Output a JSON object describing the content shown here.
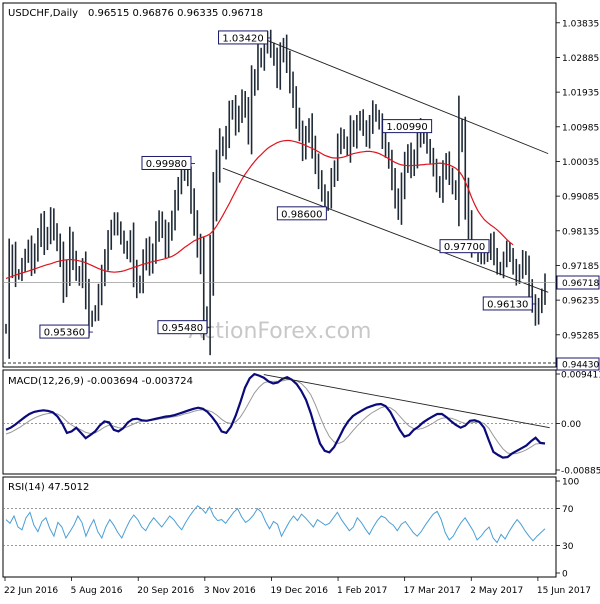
{
  "header": {
    "symbol": "USDCHF,Daily",
    "ohlc": "0.96515 0.96876 0.96335 0.96718"
  },
  "watermark": "ActionForex.com",
  "colors": {
    "price": "#1f2a36",
    "ma": "#e0141e",
    "macd": "#0a0a7a",
    "signal": "#999999",
    "rsi": "#4a9fd6",
    "trend": "#222222",
    "label_border": "#1a1a6a",
    "grid": "#777777"
  },
  "chart_data": [
    {
      "type": "line",
      "panel": "price",
      "x_tick_labels": [
        "22 Jun 2016",
        "5 Aug 2016",
        "20 Sep 2016",
        "3 Nov 2016",
        "19 Dec 2016",
        "1 Feb 2017",
        "17 Mar 2017",
        "2 May 2017",
        "15 Jun 2017"
      ],
      "y_tick_labels": [
        "1.03835",
        "1.02885",
        "1.01935",
        "1.00985",
        "1.00035",
        "0.99085",
        "0.98135",
        "0.97185",
        "0.96235",
        "0.95285"
      ],
      "ylim": [
        0.9443,
        1.0435
      ],
      "price_bars": [
        0.9545,
        0.971,
        0.975,
        0.9693,
        0.9695,
        0.972,
        0.9745,
        0.977,
        0.972,
        0.9755,
        0.9795,
        0.9835,
        0.978,
        0.9805,
        0.985,
        0.9812,
        0.978,
        0.974,
        0.966,
        0.9705,
        0.9782,
        0.9735,
        0.97,
        0.968,
        0.9715,
        0.964,
        0.9565,
        0.958,
        0.9595,
        0.964,
        0.969,
        0.9735,
        0.9785,
        0.982,
        0.9845,
        0.982,
        0.9795,
        0.977,
        0.9752,
        0.979,
        0.9705,
        0.9658,
        0.9675,
        0.973,
        0.9768,
        0.972,
        0.9755,
        0.9808,
        0.9845,
        0.9815,
        0.9768,
        0.981,
        0.9845,
        0.9895,
        0.9935,
        0.9965,
        0.998,
        0.9955,
        0.9895,
        0.9835,
        0.9775,
        0.9725,
        0.9585,
        0.9555,
        0.972,
        0.989,
        0.9985,
        1.0055,
        1.0035,
        1.0075,
        1.0135,
        1.0155,
        1.0105,
        1.0135,
        1.0175,
        1.0145,
        1.0085,
        1.0205,
        1.0235,
        1.0298,
        1.0278,
        1.0318,
        1.0342,
        1.031,
        1.0285,
        1.0235,
        1.0295,
        1.0322,
        1.0275,
        1.0222,
        1.0178,
        1.0125,
        1.0085,
        1.0035,
        1.0075,
        1.0102,
        1.0045,
        0.9998,
        0.9955,
        0.9918,
        0.9885,
        0.9905,
        0.9955,
        0.9985,
        1.0045,
        1.0075,
        1.0055,
        1.0035,
        1.0095,
        1.0065,
        1.0105,
        1.0125,
        1.0095,
        1.0065,
        1.0105,
        1.0145,
        1.0128,
        1.0108,
        1.0065,
        1.0035,
        1.0005,
        0.9955,
        0.9905,
        0.9868,
        0.9935,
        0.9995,
        1.0028,
        0.9985,
        1.0015,
        1.0065,
        1.0099,
        1.0072,
        1.0045,
        1.0018,
        0.9985,
        0.9945,
        0.9922,
        0.9975,
        1.0005,
        0.9965,
        0.9935,
        0.9915,
        1.0095,
        1.0055,
        0.9915,
        0.9835,
        0.9775,
        0.9765,
        0.9745,
        0.9735,
        0.9742,
        0.9755,
        0.9785,
        0.9745,
        0.9715,
        0.9705,
        0.9735,
        0.9765,
        0.9745,
        0.9715,
        0.9685,
        0.9705,
        0.9738,
        0.9712,
        0.9655,
        0.9615,
        0.9578,
        0.9608,
        0.9635,
        0.9672
      ],
      "moving_average": [
        0.9683,
        0.9686,
        0.9689,
        0.9692,
        0.9695,
        0.9698,
        0.97,
        0.9703,
        0.9706,
        0.9709,
        0.9712,
        0.9715,
        0.9718,
        0.9721,
        0.9723,
        0.9726,
        0.9729,
        0.9731,
        0.9733,
        0.9734,
        0.9735,
        0.9734,
        0.9733,
        0.9731,
        0.9729,
        0.9726,
        0.9722,
        0.9718,
        0.9714,
        0.971,
        0.9707,
        0.9704,
        0.9702,
        0.9701,
        0.97,
        0.9701,
        0.9702,
        0.9704,
        0.9707,
        0.971,
        0.9713,
        0.9716,
        0.9719,
        0.9722,
        0.9724,
        0.9727,
        0.9729,
        0.9731,
        0.9733,
        0.9735,
        0.9737,
        0.974,
        0.9743,
        0.9748,
        0.9754,
        0.9761,
        0.9768,
        0.9774,
        0.978,
        0.9786,
        0.979,
        0.9794,
        0.9797,
        0.98,
        0.9805,
        0.9814,
        0.9826,
        0.9841,
        0.9856,
        0.9872,
        0.9888,
        0.9905,
        0.9922,
        0.9939,
        0.9955,
        0.9969,
        0.9981,
        0.9993,
        1.0004,
        1.0014,
        1.0022,
        1.0031,
        1.0039,
        1.0045,
        1.005,
        1.0055,
        1.0058,
        1.006,
        1.0061,
        1.0061,
        1.0059,
        1.0057,
        1.0054,
        1.0051,
        1.0047,
        1.0043,
        1.0039,
        1.0035,
        1.003,
        1.0025,
        1.002,
        1.0017,
        1.0014,
        1.0013,
        1.0013,
        1.0014,
        1.0016,
        1.0019,
        1.0022,
        1.0025,
        1.0027,
        1.0029,
        1.003,
        1.0031,
        1.0031,
        1.003,
        1.0028,
        1.0025,
        1.0021,
        1.0016,
        1.0011,
        1.0006,
        1.0001,
        0.9997,
        0.9994,
        0.9993,
        0.9992,
        0.9992,
        0.9993,
        0.9993,
        0.9994,
        0.9995,
        0.9996,
        0.9996,
        0.9997,
        0.9998,
        0.9999,
        0.9998,
        0.9996,
        0.9994,
        0.999,
        0.9985,
        0.9977,
        0.9965,
        0.9948,
        0.9927,
        0.9905,
        0.9885,
        0.9868,
        0.9855,
        0.9844,
        0.9836,
        0.9829,
        0.9823,
        0.9816,
        0.9808,
        0.9799,
        0.979,
        0.9782,
        0.9775
      ],
      "price_labels": [
        "1.03420",
        "0.99980",
        "0.98600",
        "1.00990",
        "0.97700",
        "0.96130",
        "0.95360",
        "0.95480"
      ],
      "current_price": "0.96718",
      "support_level": "0.94430",
      "trend_lines": [
        {
          "from": [
            80,
            1.0342
          ],
          "to": [
            170,
            1.0025
          ]
        },
        {
          "from": [
            68,
            0.9985
          ],
          "to": [
            170,
            0.9645
          ]
        }
      ],
      "series": [
        {
          "name": "USDCHF,Daily"
        }
      ]
    },
    {
      "type": "line",
      "panel": "macd",
      "title": "MACD(12,26,9) -0.003694 -0.003724",
      "y_tick_labels": [
        "0.009411",
        "0.00",
        "-0.008852"
      ],
      "ylim": [
        -0.00885,
        0.00941
      ],
      "macd": [
        -0.0012,
        -0.0008,
        -0.0002,
        0.0005,
        0.0012,
        0.0018,
        0.0022,
        0.0024,
        0.0025,
        0.0024,
        0.0021,
        0.0013,
        0.0,
        -0.0018,
        -0.0015,
        -0.0008,
        -0.0018,
        -0.0028,
        -0.0022,
        -0.0015,
        -0.0004,
        0.0004,
        0.0002,
        -0.0012,
        -0.0015,
        -0.0009,
        0.0002,
        0.0008,
        0.0009,
        0.0006,
        0.0005,
        0.0007,
        0.0009,
        0.0011,
        0.0013,
        0.0014,
        0.0016,
        0.0019,
        0.0022,
        0.0025,
        0.0028,
        0.003,
        0.0028,
        0.0022,
        0.0012,
        0.0,
        -0.0015,
        -0.0018,
        -0.0006,
        0.0015,
        0.004,
        0.0068,
        0.0086,
        0.0094,
        0.0091,
        0.0087,
        0.008,
        0.0076,
        0.0078,
        0.0085,
        0.0088,
        0.0083,
        0.0075,
        0.0062,
        0.0045,
        0.002,
        -0.001,
        -0.0038,
        -0.0052,
        -0.0055,
        -0.0045,
        -0.0028,
        -0.001,
        0.0004,
        0.0014,
        0.002,
        0.0025,
        0.003,
        0.0033,
        0.0036,
        0.0037,
        0.0033,
        0.0022,
        0.0005,
        -0.0012,
        -0.0025,
        -0.0022,
        -0.0012,
        -0.0006,
        0.0002,
        0.0008,
        0.0013,
        0.0018,
        0.0018,
        0.0012,
        0.0004,
        -0.0003,
        -0.0008,
        -0.0004,
        0.0005,
        0.0006,
        0.0003,
        -0.0008,
        -0.0032,
        -0.0054,
        -0.006,
        -0.0065,
        -0.0064,
        -0.0057,
        -0.0052,
        -0.0047,
        -0.0042,
        -0.0034,
        -0.0027,
        -0.0037,
        -0.0038
      ],
      "signal": [
        -0.002,
        -0.0017,
        -0.0012,
        -0.0007,
        -0.0001,
        0.0005,
        0.001,
        0.0014,
        0.0017,
        0.0019,
        0.002,
        0.0018,
        0.0013,
        0.0004,
        -0.0003,
        -0.0008,
        -0.0012,
        -0.0017,
        -0.0019,
        -0.0018,
        -0.0013,
        -0.0007,
        -0.0003,
        -0.0005,
        -0.0008,
        -0.0009,
        -0.0006,
        -0.0002,
        0.0002,
        0.0004,
        0.0005,
        0.0006,
        0.0007,
        0.0009,
        0.001,
        0.0012,
        0.0013,
        0.0015,
        0.0018,
        0.002,
        0.0023,
        0.0025,
        0.0026,
        0.0025,
        0.0022,
        0.0016,
        0.0008,
        0.0002,
        0.0,
        0.0003,
        0.0012,
        0.0026,
        0.0042,
        0.0058,
        0.0069,
        0.0077,
        0.008,
        0.008,
        0.008,
        0.0081,
        0.0083,
        0.0083,
        0.0081,
        0.0076,
        0.0067,
        0.0055,
        0.0036,
        0.0013,
        -0.0008,
        -0.0025,
        -0.0035,
        -0.0038,
        -0.0034,
        -0.0025,
        -0.0014,
        -0.0004,
        0.0005,
        0.0013,
        0.002,
        0.0025,
        0.003,
        0.0032,
        0.003,
        0.0024,
        0.0014,
        0.0004,
        -0.0005,
        -0.001,
        -0.0011,
        -0.0009,
        -0.0005,
        0.0,
        0.0006,
        0.001,
        0.0011,
        0.001,
        0.0007,
        0.0003,
        0.0,
        0.0001,
        0.0002,
        0.0003,
        0.0,
        -0.0009,
        -0.0023,
        -0.0036,
        -0.0048,
        -0.0056,
        -0.0058,
        -0.0057,
        -0.0054,
        -0.005,
        -0.0045,
        -0.0039,
        -0.0038,
        -0.0038
      ],
      "trend_line": {
        "from": [
          55,
          0.0093
        ],
        "to": [
          116,
          -0.0008
        ]
      }
    },
    {
      "type": "line",
      "panel": "rsi",
      "title": "RSI(14) 47.5012",
      "y_tick_labels": [
        "100",
        "70",
        "30",
        "0"
      ],
      "ylim": [
        0,
        100
      ],
      "levels": [
        70,
        30
      ],
      "values": [
        58,
        54,
        62,
        50,
        47,
        60,
        66,
        52,
        45,
        56,
        60,
        48,
        40,
        55,
        50,
        38,
        45,
        52,
        62,
        55,
        40,
        50,
        58,
        45,
        38,
        50,
        58,
        52,
        44,
        38,
        48,
        57,
        63,
        58,
        50,
        46,
        54,
        60,
        55,
        50,
        56,
        62,
        58,
        52,
        47,
        55,
        62,
        68,
        73,
        70,
        65,
        72,
        62,
        57,
        58,
        54,
        60,
        66,
        70,
        61,
        55,
        58,
        63,
        70,
        66,
        56,
        48,
        56,
        53,
        40,
        48,
        56,
        62,
        57,
        64,
        60,
        55,
        50,
        58,
        55,
        52,
        54,
        60,
        66,
        58,
        52,
        46,
        50,
        60,
        55,
        48,
        42,
        50,
        57,
        62,
        60,
        55,
        52,
        46,
        53,
        56,
        50,
        44,
        40,
        45,
        52,
        58,
        64,
        67,
        58,
        44,
        36,
        40,
        48,
        55,
        60,
        53,
        46,
        36,
        40,
        46,
        50,
        38,
        33,
        42,
        37,
        45,
        52,
        58,
        53,
        46,
        40,
        35,
        40,
        44,
        48
      ]
    }
  ]
}
